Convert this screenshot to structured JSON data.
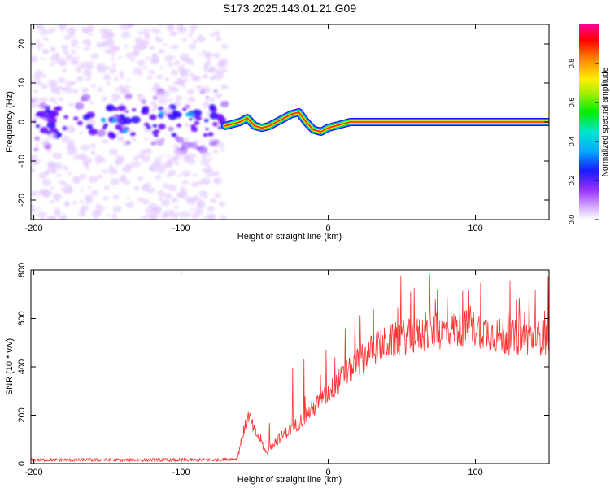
{
  "title": "S173.2025.143.01.21.G09",
  "chart_data": [
    {
      "type": "heatmap",
      "xlabel": "Height of straight line (km)",
      "ylabel": "Frequency (Hz)",
      "xlim": [
        -202,
        150
      ],
      "ylim": [
        -25,
        25
      ],
      "xticks": [
        -200,
        -100,
        0,
        100
      ],
      "yticks": [
        -20,
        -10,
        0,
        10,
        20
      ],
      "colorbar": {
        "label": "Normalized spectral amplitude",
        "range": [
          0,
          1
        ],
        "ticks": [
          "0.0",
          "0.2",
          "0.4",
          "0.6",
          "0.8"
        ]
      },
      "signal_ridge": {
        "x": [
          -70,
          -65,
          -60,
          -55,
          -50,
          -45,
          -40,
          -35,
          -30,
          -25,
          -20,
          -15,
          -10,
          -5,
          0,
          5,
          10,
          15,
          20,
          30,
          40,
          60,
          80,
          100,
          120,
          150
        ],
        "y": [
          -1,
          -0.5,
          0,
          1,
          -1,
          -1.5,
          -1,
          0,
          1,
          2,
          2.5,
          0,
          -2,
          -2.5,
          -1.5,
          -1,
          -0.5,
          0,
          0,
          0,
          0,
          0,
          0,
          0,
          0,
          0
        ]
      },
      "noise_region_x": [
        -202,
        -70
      ]
    },
    {
      "type": "line",
      "xlabel": "Height of straight line (km)",
      "ylabel": "SNR (10 * v/v)",
      "xlim": [
        -202,
        150
      ],
      "ylim": [
        0,
        800
      ],
      "xticks": [
        -200,
        -100,
        0,
        100
      ],
      "yticks": [
        0,
        200,
        400,
        600,
        800
      ],
      "color": "#ff3333",
      "series": [
        {
          "x": [
            -202,
            -180,
            -160,
            -140,
            -120,
            -100,
            -80,
            -62,
            -58,
            -54,
            -50,
            -46,
            -42,
            -38,
            -34,
            -30,
            -20,
            -10,
            0,
            10,
            20,
            30,
            40,
            50,
            60,
            70,
            80,
            90,
            100,
            110,
            120,
            130,
            140,
            150
          ],
          "values": [
            15,
            15,
            15,
            15,
            15,
            15,
            15,
            20,
            120,
            200,
            130,
            100,
            40,
            80,
            100,
            120,
            170,
            230,
            290,
            360,
            420,
            470,
            500,
            520,
            530,
            540,
            550,
            560,
            560,
            540,
            520,
            520,
            520,
            520
          ]
        }
      ]
    }
  ]
}
